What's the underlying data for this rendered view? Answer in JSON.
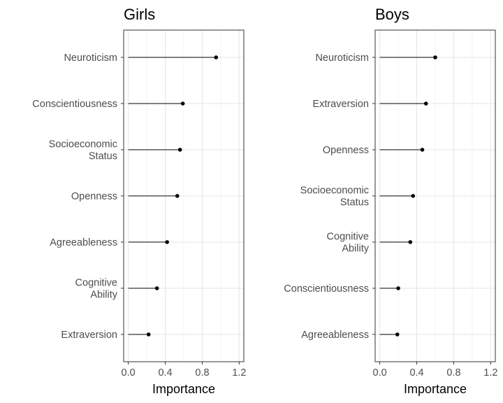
{
  "chart_data": [
    {
      "type": "lollipop",
      "title": "Girls",
      "xlabel": "Importance",
      "xlim": [
        -0.05,
        1.25
      ],
      "xticks": [
        0.0,
        0.4,
        0.8,
        1.2
      ],
      "xtick_labels": [
        "0.0",
        "0.4",
        "0.8",
        "1.2"
      ],
      "grid": true,
      "items": [
        {
          "label": [
            "Neuroticism"
          ],
          "value": 0.95
        },
        {
          "label": [
            "Conscientiousness"
          ],
          "value": 0.59
        },
        {
          "label": [
            "Socioeconomic",
            "Status"
          ],
          "value": 0.56
        },
        {
          "label": [
            "Openness"
          ],
          "value": 0.53
        },
        {
          "label": [
            "Agreeableness"
          ],
          "value": 0.42
        },
        {
          "label": [
            "Cognitive",
            "Ability"
          ],
          "value": 0.31
        },
        {
          "label": [
            "Extraversion"
          ],
          "value": 0.22
        }
      ]
    },
    {
      "type": "lollipop",
      "title": "Boys",
      "xlabel": "Importance",
      "xlim": [
        -0.05,
        1.25
      ],
      "xticks": [
        0.0,
        0.4,
        0.8,
        1.2
      ],
      "xtick_labels": [
        "0.0",
        "0.4",
        "0.8",
        "1.2"
      ],
      "grid": true,
      "items": [
        {
          "label": [
            "Neuroticism"
          ],
          "value": 0.6
        },
        {
          "label": [
            "Extraversion"
          ],
          "value": 0.5
        },
        {
          "label": [
            "Openness"
          ],
          "value": 0.46
        },
        {
          "label": [
            "Socioeconomic",
            "Status"
          ],
          "value": 0.36
        },
        {
          "label": [
            "Cognitive",
            "Ability"
          ],
          "value": 0.33
        },
        {
          "label": [
            "Conscientiousness"
          ],
          "value": 0.2
        },
        {
          "label": [
            "Agreeableness"
          ],
          "value": 0.19
        }
      ]
    }
  ]
}
